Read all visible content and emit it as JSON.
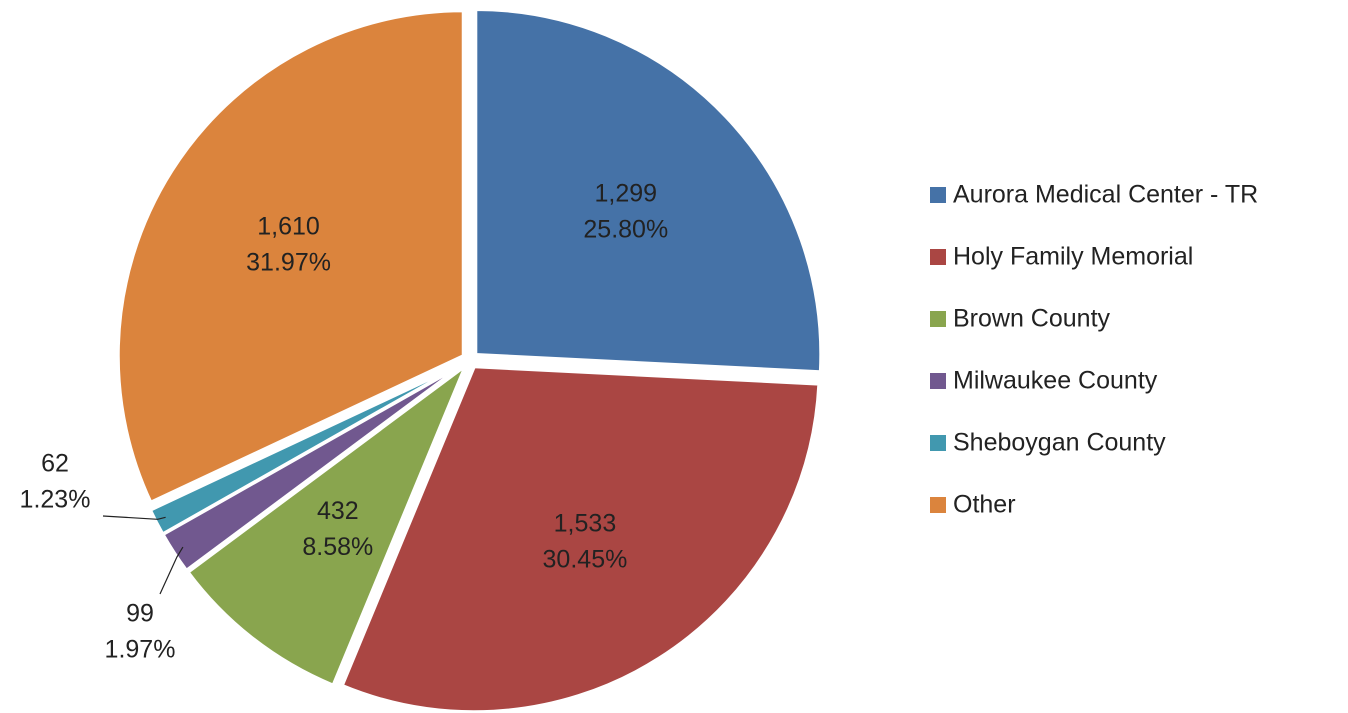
{
  "chart_data": {
    "type": "pie",
    "categories": [
      "Aurora Medical Center - TR",
      "Holy Family Memorial",
      "Brown County",
      "Milwaukee County",
      "Sheboygan County",
      "Other"
    ],
    "values": [
      1299,
      1533,
      432,
      99,
      62,
      1610
    ],
    "value_labels": [
      "1,299",
      "1,533",
      "432",
      "99",
      "62",
      "1,610"
    ],
    "percents": [
      25.8,
      30.45,
      8.58,
      1.97,
      1.23,
      31.97
    ],
    "percent_labels": [
      "25.80%",
      "30.45%",
      "8.58%",
      "1.97%",
      "1.23%",
      "31.97%"
    ],
    "colors": [
      "#4572a7",
      "#aa4643",
      "#89a54e",
      "#71588f",
      "#4198af",
      "#db843d"
    ],
    "legend": "right"
  }
}
